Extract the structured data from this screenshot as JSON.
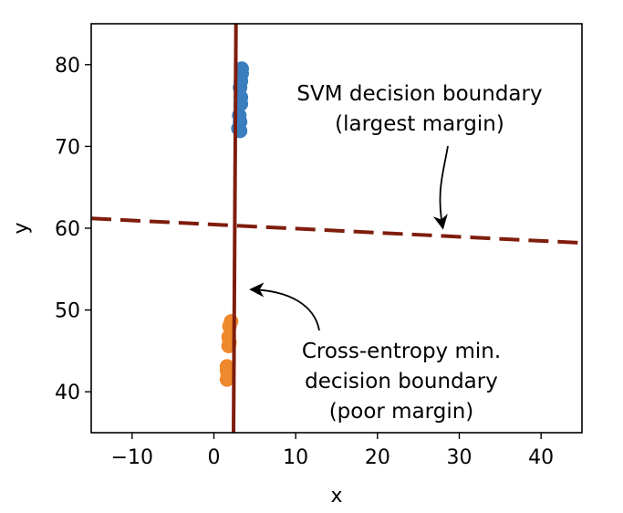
{
  "chart_data": {
    "type": "scatter",
    "title": "",
    "xlabel": "x",
    "ylabel": "y",
    "xlim": [
      -15,
      45
    ],
    "ylim": [
      35,
      85
    ],
    "xticks": [
      -10,
      0,
      10,
      20,
      30,
      40
    ],
    "yticks": [
      40,
      50,
      60,
      70,
      80
    ],
    "grid": false,
    "legend": "none",
    "series": [
      {
        "color": "#3a7ebf",
        "points": [
          {
            "x": 3.4,
            "y": 79.5
          },
          {
            "x": 3.4,
            "y": 78.9
          },
          {
            "x": 3.3,
            "y": 78.0
          },
          {
            "x": 3.2,
            "y": 77.2
          },
          {
            "x": 3.3,
            "y": 76.0
          },
          {
            "x": 3.3,
            "y": 75.2
          },
          {
            "x": 3.1,
            "y": 73.8
          },
          {
            "x": 3.2,
            "y": 73.0
          },
          {
            "x": 3.0,
            "y": 72.2
          },
          {
            "x": 3.2,
            "y": 71.9
          }
        ]
      },
      {
        "color": "#f0892d",
        "points": [
          {
            "x": 2.1,
            "y": 48.6
          },
          {
            "x": 1.9,
            "y": 48.0
          },
          {
            "x": 1.8,
            "y": 46.7
          },
          {
            "x": 1.9,
            "y": 46.0
          },
          {
            "x": 1.8,
            "y": 45.6
          },
          {
            "x": 1.6,
            "y": 43.1
          },
          {
            "x": 1.6,
            "y": 42.6
          },
          {
            "x": 1.7,
            "y": 42.0
          },
          {
            "x": 1.6,
            "y": 41.5
          }
        ]
      }
    ],
    "lines": [
      {
        "style": "solid",
        "color": "#7f1d0d",
        "from": {
          "x": 2.7,
          "y": 85
        },
        "to": {
          "x": 2.4,
          "y": 35
        }
      },
      {
        "style": "dashed",
        "color": "#7f1d0d",
        "from": {
          "x": -15,
          "y": 61.2
        },
        "to": {
          "x": 45,
          "y": 58.2
        }
      }
    ],
    "annotations": [
      {
        "lines": [
          "SVM decision boundary",
          "(largest margin)"
        ],
        "arrow_to": {
          "x": 28,
          "y": 60
        }
      },
      {
        "lines": [
          "Cross-entropy min.",
          "decision boundary",
          "(poor margin)"
        ],
        "arrow_to": {
          "x": 4.5,
          "y": 52.5
        }
      }
    ]
  }
}
